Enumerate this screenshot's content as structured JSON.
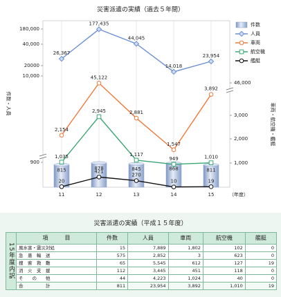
{
  "chart_data": {
    "type": "combo",
    "title": "災害派遣の実績（過去５年間）",
    "categories": [
      "11",
      "12",
      "13",
      "14",
      "15"
    ],
    "xlabel": "（年度）",
    "ylabel": "件数・人員",
    "y2label": "車両・航空機・艦艇",
    "yticks": [
      900,
      {
        "value": 10000,
        "label": "10,000"
      },
      20000,
      {
        "value": 40000,
        "label": "40,000"
      },
      {
        "value": 180000,
        "label": "180,000"
      }
    ],
    "y2ticks": [
      {
        "value": 1000,
        "label": "1,000"
      },
      {
        "value": 2000,
        "label": "2,000"
      },
      {
        "value": 3000,
        "label": "3,000"
      },
      {
        "value": 46000,
        "label": "46,000"
      }
    ],
    "legend": "upper right",
    "series": [
      {
        "name": "件数",
        "type": "bar",
        "color": "#9fb3d6",
        "values": [
          815,
          878,
          845,
          868,
          811
        ]
      },
      {
        "name": "人員",
        "type": "line",
        "marker": "diamond",
        "color": "#6b8fd4",
        "values": [
          26367,
          177435,
          44045,
          14018,
          23954
        ],
        "value_labels": [
          "26,367",
          "177,435",
          "44,045",
          "14,018",
          "23,954"
        ]
      },
      {
        "name": "車両",
        "type": "line",
        "axis": "y2",
        "marker": "circle",
        "color": "#f07a3a",
        "values": [
          2154,
          45122,
          2881,
          1547,
          3892
        ],
        "value_labels": [
          "2,154",
          "45,122",
          "2,881",
          "1,547",
          "3,892"
        ]
      },
      {
        "name": "航空機",
        "type": "line",
        "axis": "y2",
        "marker": "square",
        "color": "#3aa874",
        "values": [
          1035,
          2945,
          1117,
          949,
          1010
        ],
        "value_labels": [
          "1,035",
          "2,945",
          "1,117",
          "949",
          "1,010"
        ]
      },
      {
        "name": "艦艇",
        "type": "line",
        "axis": "y2",
        "marker": "circle",
        "color": "#111111",
        "values": [
          20,
          421,
          270,
          10,
          19
        ]
      }
    ]
  },
  "table": {
    "title": "災害派遣の実績（平成１５年度）",
    "side_label": "15年度内訳",
    "header": [
      "項　　　目",
      "件数",
      "人員",
      "車両",
      "航空機",
      "艦艇"
    ],
    "rows": [
      [
        "風水害・震災対処",
        "15",
        "7,889",
        "1,802",
        "102",
        "0"
      ],
      [
        "急　患　輸　送",
        "575",
        "2,852",
        "3",
        "623",
        "0"
      ],
      [
        "捜　索　救　難",
        "65",
        "5,545",
        "612",
        "127",
        "19"
      ],
      [
        "消　火　支　援",
        "112",
        "3,445",
        "451",
        "118",
        "0"
      ],
      [
        "そ　　の　　他",
        "44",
        "4,223",
        "1,024",
        "40",
        "0"
      ],
      [
        "合　　　　　計",
        "811",
        "23,954",
        "3,892",
        "1,010",
        "19"
      ]
    ]
  }
}
